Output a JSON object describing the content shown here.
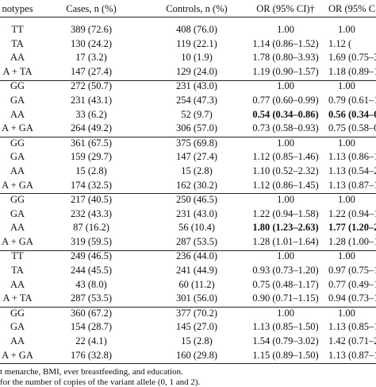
{
  "table": {
    "header": [
      "notypes",
      "Cases, n (%)",
      "Controls, n (%)",
      "OR (95% CI)†",
      "OR (95% C"
    ],
    "groups": [
      {
        "rows": [
          [
            "TT",
            "389 (72.6)",
            "408 (76.0)",
            "1.00",
            "1.00"
          ],
          [
            "TA",
            "130 (24.2)",
            "119 (22.1)",
            "1.14 (0.86–1.52)",
            "1.12 ("
          ],
          [
            "AA",
            "17 (3.2)",
            "10 (1.9)",
            "1.78 (0.80–3.93)",
            "1.69 (0.75–3"
          ],
          [
            "A + TA",
            "147 (27.4)",
            "129 (24.0)",
            "1.19 (0.90–1.57)",
            "1.18 (0.89–1"
          ]
        ]
      },
      {
        "rows": [
          [
            "GG",
            "272 (50.7)",
            "231 (43.0)",
            "1.00",
            "1.00"
          ],
          [
            "GA",
            "231 (43.1)",
            "254 (47.3)",
            "0.77 (0.60–0.99)",
            "0.79 (0.61–1"
          ],
          [
            "AA",
            "33 (6.2)",
            "52 (9.7)",
            "0.54 (0.34–0.86)",
            "0.56 (0.34–0."
          ],
          [
            "A + GA",
            "264 (49.2)",
            "306 (57.0)",
            "0.73 (0.58–0.93)",
            "0.75 (0.58–0"
          ]
        ]
      },
      {
        "rows": [
          [
            "GG",
            "361 (67.5)",
            "375 (69.8)",
            "1.00",
            "1.00"
          ],
          [
            "GA",
            "159 (29.7)",
            "147 (27.4)",
            "1.12 (0.85–1.46)",
            "1.13 (0.86–1"
          ],
          [
            "AA",
            "15 (2.8)",
            "15 (2.8)",
            "1.10 (0.52–2.32)",
            "1.13 (0.54–2"
          ],
          [
            "A + GA",
            "174 (32.5)",
            "162 (30.2)",
            "1.12 (0.86–1.45)",
            "1.13 (0.87–1"
          ]
        ]
      },
      {
        "rows": [
          [
            "GG",
            "217 (40.5)",
            "250 (46.5)",
            "1.00",
            "1.00"
          ],
          [
            "GA",
            "232 (43.3)",
            "231 (43.0)",
            "1.22 (0.94–1.58)",
            "1.22 (0.94–1"
          ],
          [
            "AA",
            "87 (16.2)",
            "56 (10.4)",
            "1.80 (1.23–2.63)",
            "1.77 (1.20–2"
          ],
          [
            "A + GA",
            "319 (59.5)",
            "287 (53.5)",
            "1.28 (1.01–1.64)",
            "1.28 (1.00–1"
          ]
        ]
      },
      {
        "rows": [
          [
            "TT",
            "249 (46.5)",
            "236 (44.0)",
            "1.00",
            "1.00"
          ],
          [
            "TA",
            "244 (45.5)",
            "241 (44.9)",
            "0.93 (0.73–1.20)",
            "0.97 (0.75–1"
          ],
          [
            "AA",
            "43 (8.0)",
            "60 (11.2)",
            "0.75 (0.48–1.17)",
            "0.77 (0.49–1"
          ],
          [
            "A + TA",
            "287 (53.5)",
            "301 (56.0)",
            "0.90 (0.71–1.15)",
            "0.94 (0.73–1"
          ]
        ]
      },
      {
        "rows": [
          [
            "GG",
            "360 (67.2)",
            "377 (70.2)",
            "1.00",
            "1.00"
          ],
          [
            "GA",
            "154 (28.7)",
            "145 (27.0)",
            "1.13 (0.85–1.50)",
            "1.13 (0.85–1"
          ],
          [
            "AA",
            "22 (4.1)",
            "15 (2.8)",
            "1.54 (0.79–3.02)",
            "1.42 (0.71–2"
          ],
          [
            "A + GA",
            "176 (32.8)",
            "160 (29.8)",
            "1.15 (0.89–1.50)",
            "1.13 (0.87–1"
          ]
        ]
      }
    ],
    "bold_cells": [
      [
        1,
        2,
        3
      ],
      [
        1,
        2,
        4
      ],
      [
        3,
        2,
        3
      ],
      [
        3,
        2,
        4
      ]
    ],
    "footnotes": [
      "t menarche, BMI, ever breastfeeding, and education.",
      " for the number of copies of the variant allele (0, 1 and 2)."
    ]
  }
}
